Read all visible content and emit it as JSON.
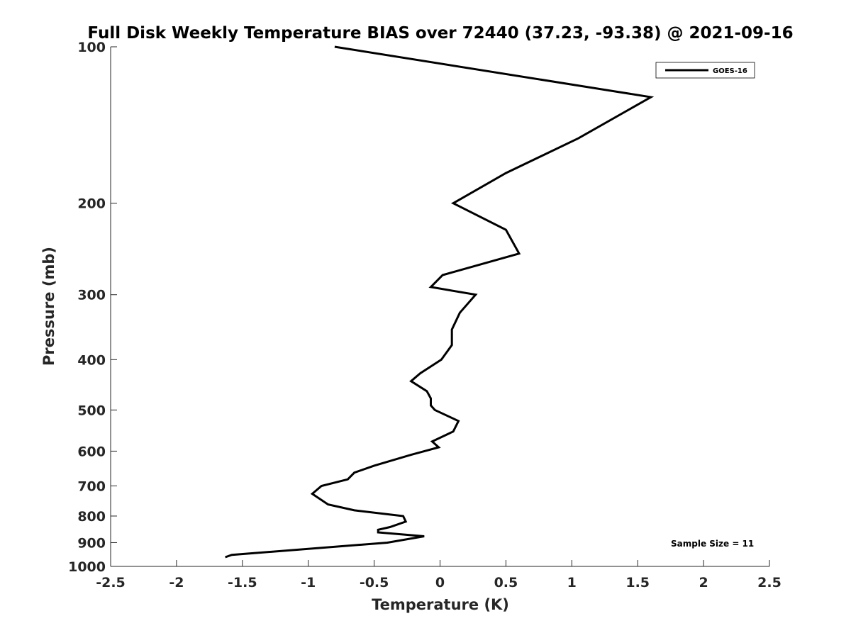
{
  "chart_data": {
    "type": "line",
    "title": "Full Disk Weekly Temperature BIAS over 72440 (37.23, -93.38) @ 2021-09-16",
    "xlabel": "Temperature (K)",
    "ylabel": "Pressure (mb)",
    "xlim": [
      -2.5,
      2.5
    ],
    "ylim": [
      100,
      1000
    ],
    "y_scale": "log",
    "y_reversed": true,
    "xticks": [
      -2.5,
      -2,
      -1.5,
      -1,
      -0.5,
      0,
      0.5,
      1,
      1.5,
      2,
      2.5
    ],
    "xtick_labels": [
      "-2.5",
      "-2",
      "-1.5",
      "-1",
      "-0.5",
      "0",
      "0.5",
      "1",
      "1.5",
      "2",
      "2.5"
    ],
    "yticks": [
      100,
      200,
      300,
      400,
      500,
      600,
      700,
      800,
      900,
      1000
    ],
    "ytick_labels": [
      "100",
      "200",
      "300",
      "400",
      "500",
      "600",
      "700",
      "800",
      "900",
      "1000"
    ],
    "grid": false,
    "legend_position": "top-right",
    "series": [
      {
        "name": "GOES-16",
        "color": "#000000",
        "points": [
          {
            "x": -0.8,
            "y": 100
          },
          {
            "x": 1.6,
            "y": 125
          },
          {
            "x": 1.05,
            "y": 150
          },
          {
            "x": 0.5,
            "y": 175
          },
          {
            "x": 0.1,
            "y": 200
          },
          {
            "x": 0.5,
            "y": 225
          },
          {
            "x": 0.6,
            "y": 250
          },
          {
            "x": 0.02,
            "y": 275
          },
          {
            "x": -0.07,
            "y": 290
          },
          {
            "x": 0.27,
            "y": 300
          },
          {
            "x": 0.15,
            "y": 325
          },
          {
            "x": 0.09,
            "y": 350
          },
          {
            "x": 0.09,
            "y": 375
          },
          {
            "x": 0.01,
            "y": 400
          },
          {
            "x": -0.15,
            "y": 425
          },
          {
            "x": -0.22,
            "y": 440
          },
          {
            "x": -0.1,
            "y": 460
          },
          {
            "x": -0.07,
            "y": 475
          },
          {
            "x": -0.07,
            "y": 490
          },
          {
            "x": -0.04,
            "y": 500
          },
          {
            "x": 0.14,
            "y": 525
          },
          {
            "x": 0.1,
            "y": 550
          },
          {
            "x": -0.06,
            "y": 575
          },
          {
            "x": -0.01,
            "y": 590
          },
          {
            "x": -0.22,
            "y": 610
          },
          {
            "x": -0.5,
            "y": 640
          },
          {
            "x": -0.65,
            "y": 660
          },
          {
            "x": -0.7,
            "y": 680
          },
          {
            "x": -0.9,
            "y": 700
          },
          {
            "x": -0.97,
            "y": 725
          },
          {
            "x": -0.85,
            "y": 760
          },
          {
            "x": -0.65,
            "y": 780
          },
          {
            "x": -0.28,
            "y": 800
          },
          {
            "x": -0.26,
            "y": 820
          },
          {
            "x": -0.38,
            "y": 840
          },
          {
            "x": -0.47,
            "y": 850
          },
          {
            "x": -0.47,
            "y": 860
          },
          {
            "x": -0.12,
            "y": 875
          },
          {
            "x": -0.4,
            "y": 900
          },
          {
            "x": -1.58,
            "y": 950
          },
          {
            "x": -1.63,
            "y": 960
          }
        ]
      }
    ],
    "annotation": "Sample Size = 11"
  }
}
